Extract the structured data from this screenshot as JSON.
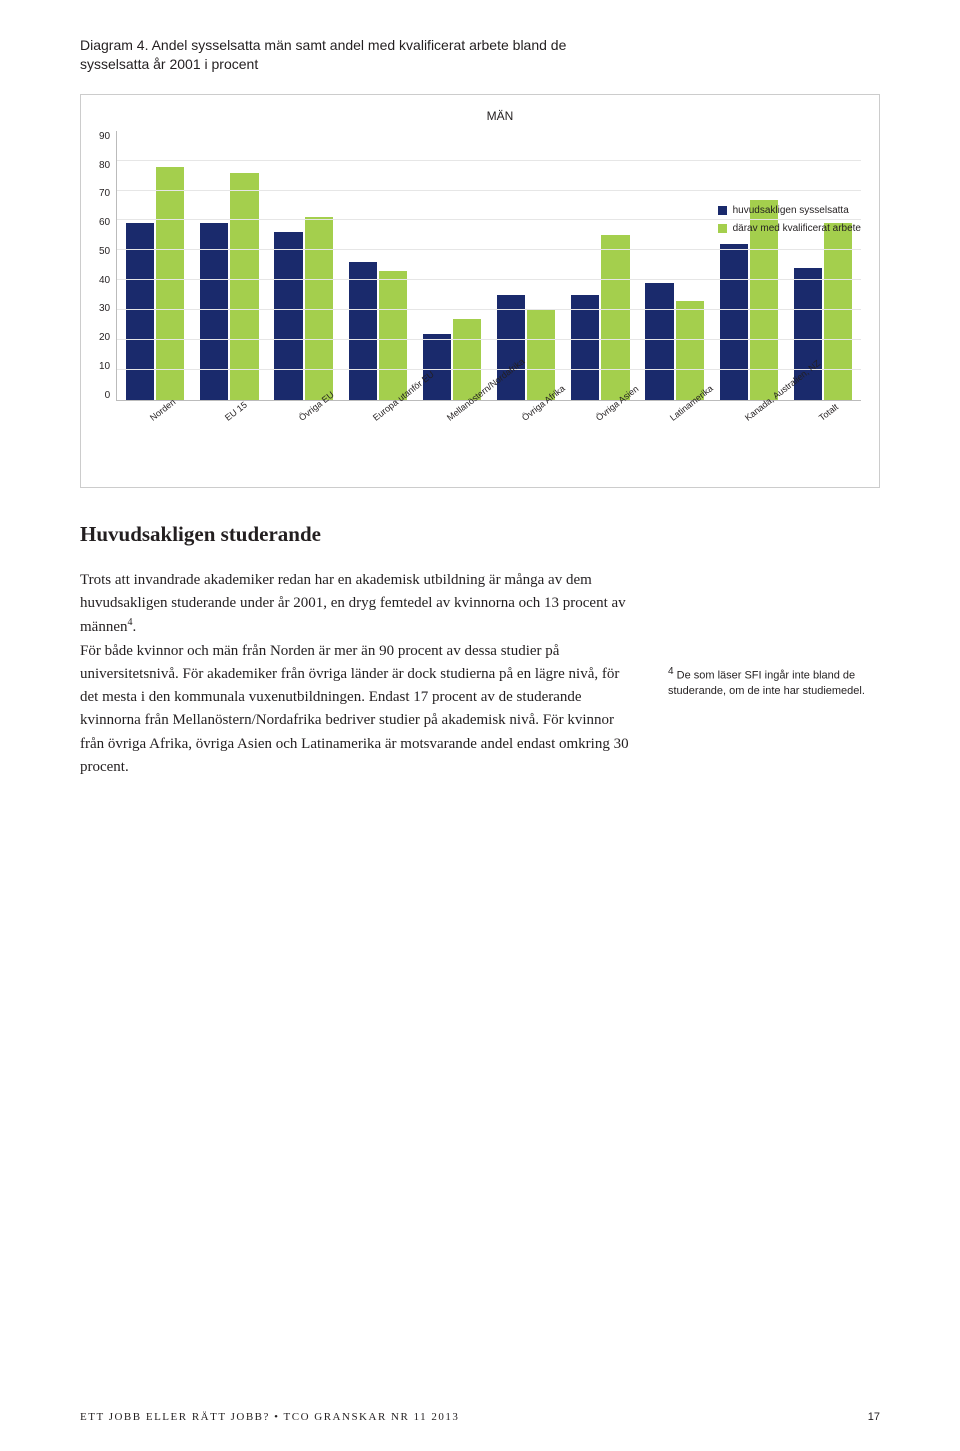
{
  "caption": {
    "label": "Diagram 4.",
    "text": "Andel sysselsatta män samt andel med kvalificerat arbete bland de sysselsatta år 2001 i procent"
  },
  "chart": {
    "type": "grouped-bar",
    "title": "MÄN",
    "ylim": [
      0,
      90
    ],
    "ytick_step": 10,
    "yticks": [
      "90",
      "80",
      "70",
      "60",
      "50",
      "40",
      "30",
      "20",
      "10",
      "0"
    ],
    "gridline_percents": [
      11.11,
      22.22,
      33.33,
      44.44,
      55.56,
      66.67,
      77.78,
      88.89
    ],
    "grid_color": "#e6e6e6",
    "axis_color": "#bbbbbb",
    "background_color": "#ffffff",
    "series": [
      {
        "name": "huvudsakligen sysselsatta",
        "color": "#1a2a6c"
      },
      {
        "name": "därav med kvalificerat arbete",
        "color": "#a4cf4d"
      }
    ],
    "categories": [
      "Norden",
      "EU 15",
      "Övriga EU",
      "Europa utanför EU",
      "Mellanöstern/Nordafrika",
      "Övriga Afrika",
      "Övriga Asien",
      "Latinamerika",
      "Kanada, Australien, NZ",
      "Totalt"
    ],
    "values_a": [
      59,
      59,
      56,
      46,
      22,
      35,
      35,
      39,
      52,
      44
    ],
    "values_b": [
      78,
      76,
      61,
      43,
      27,
      30,
      55,
      33,
      67,
      59
    ],
    "bar_width": 0.9,
    "label_fontsize": 9,
    "tick_fontsize": 10,
    "legend_fontsize": 10
  },
  "heading": "Huvudsakligen studerande",
  "body": {
    "p1": "Trots att invandrade akademiker redan har en akademisk utbildning är många av dem huvudsakligen studerande under år 2001, en dryg femtedel av kvinnorna och 13 procent av männen",
    "sup": "4",
    "p1_tail": ".",
    "p2": "För både kvinnor och män från Norden är mer än 90 procent av dessa studier på universitetsnivå. För akademiker från övriga länder är dock studierna på en lägre nivå, för det mesta i den kommunala vuxenutbildningen. Endast 17 procent av de studerande kvinnorna från Mellanöstern/Nordafrika bedriver studier på akademisk nivå. För kvinnor från övriga Afrika, övriga Asien och Latinamerika är motsvarande andel endast omkring 30 procent."
  },
  "sidenote": {
    "sup": "4",
    "text": " De som läser SFI ingår inte bland de studerande, om de inte har studiemedel."
  },
  "footer": {
    "left": "ETT JOBB ELLER RÄTT JOBB? • TCO GRANSKAR NR 11 2013",
    "page": "17"
  }
}
